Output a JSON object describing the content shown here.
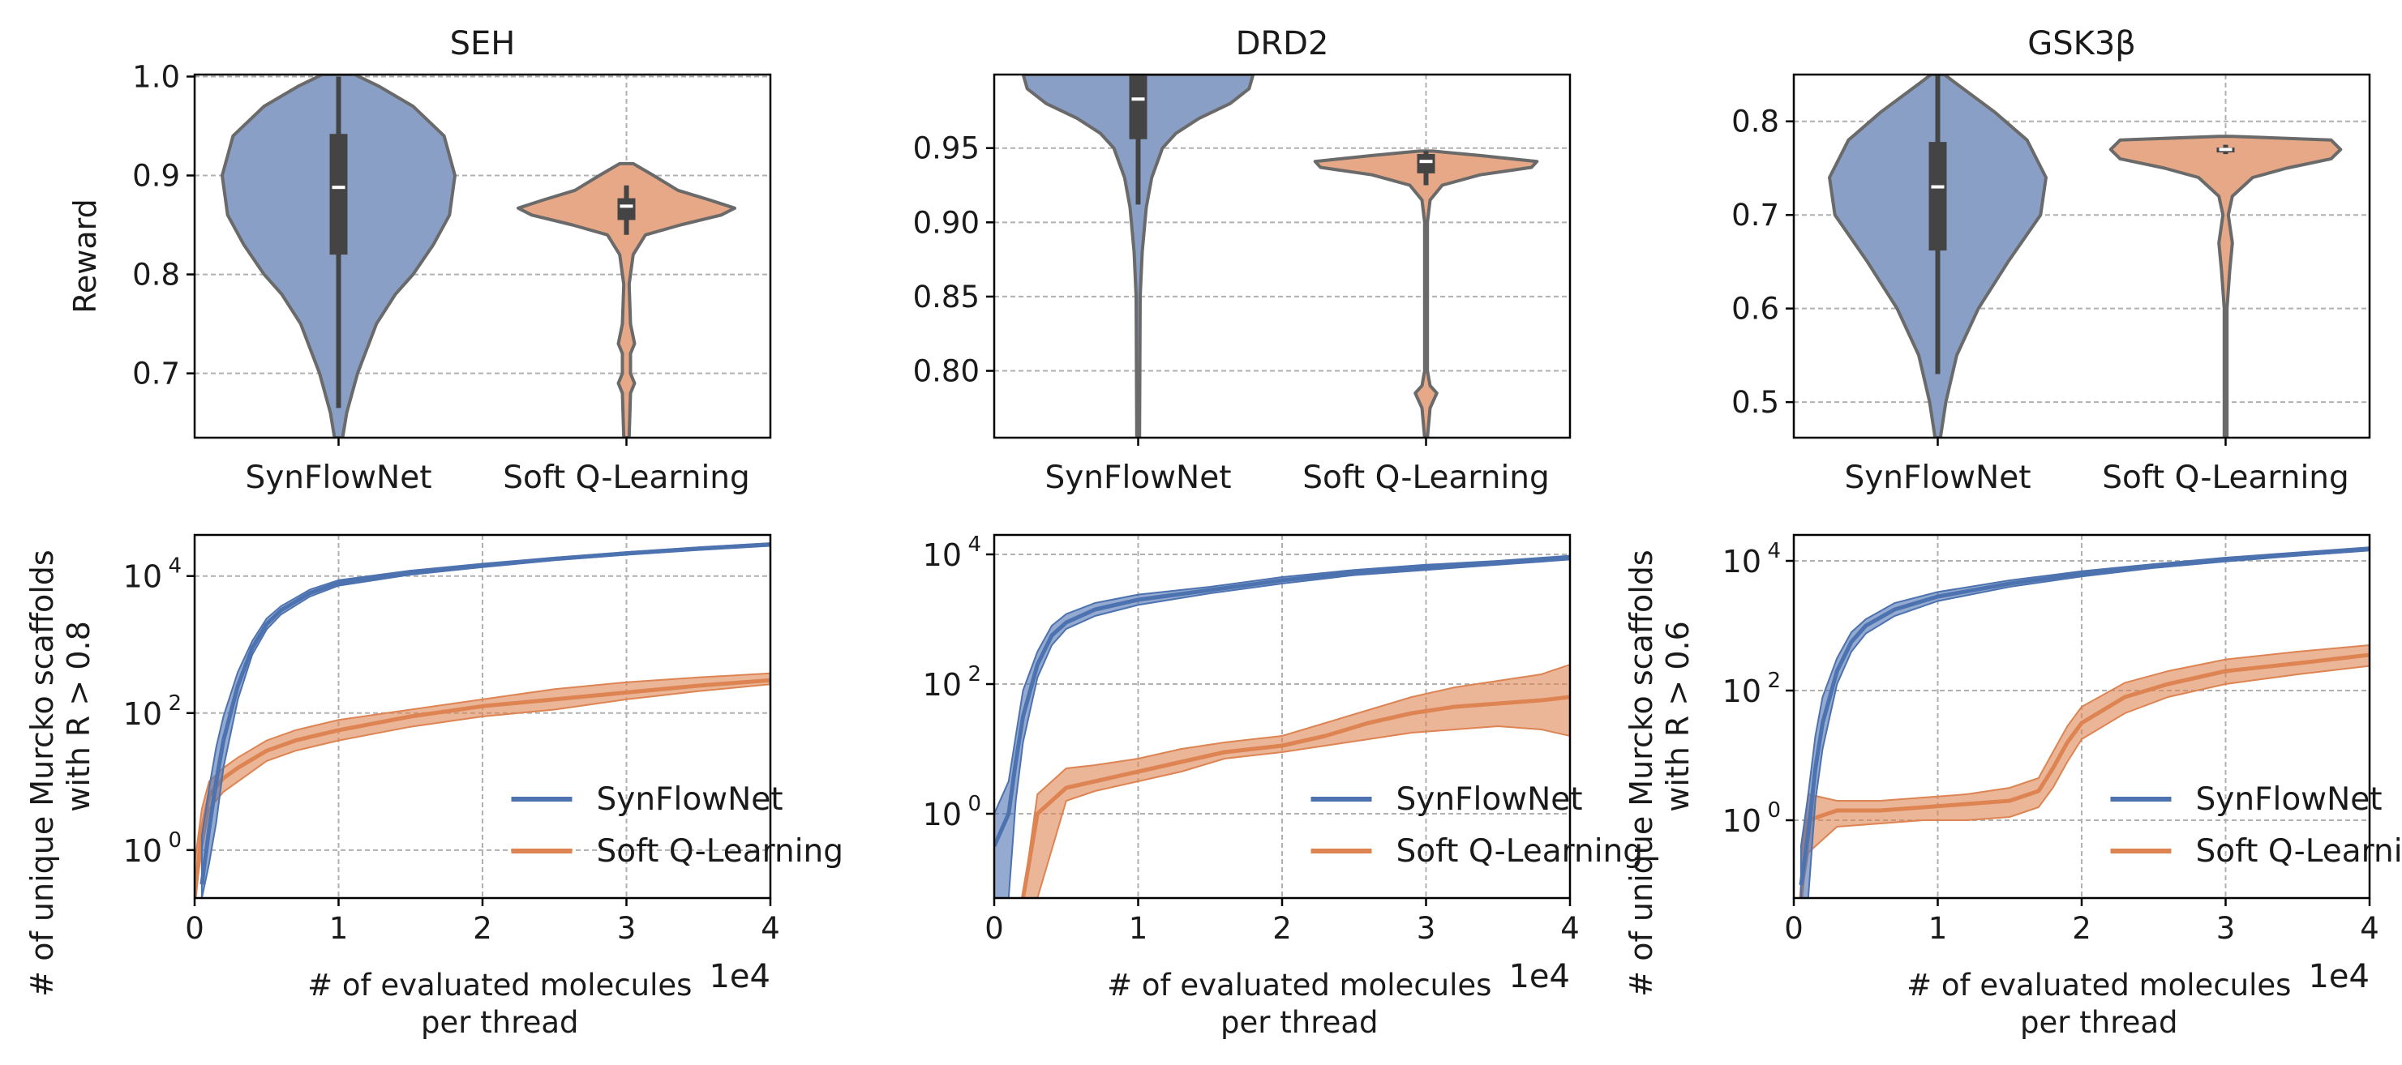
{
  "colors": {
    "synflownet": "#4c72b0",
    "soft_q": "#dd8452",
    "synflownet_violin": "#8a9fc6",
    "soft_q_violin": "#e6a887",
    "grid": "#b0b0b0"
  },
  "chart_data": [
    {
      "type": "violin",
      "title": "SEH",
      "ylabel": "Reward",
      "ylim": [
        0.635,
        1.002
      ],
      "yticks": [
        0.7,
        0.8,
        0.9,
        1.0
      ],
      "ytick_labels": [
        "0.7",
        "0.8",
        "0.9",
        "1.0"
      ],
      "categories": [
        "SynFlowNet",
        "Soft Q-Learning"
      ],
      "violins": [
        {
          "name": "SynFlowNet",
          "color": "#8a9fc6",
          "median": 0.888,
          "q1": 0.82,
          "q3": 0.942,
          "whisker_low": 0.665,
          "whisker_high": 1.0,
          "shape": [
            [
              0.635,
              0.03
            ],
            [
              0.66,
              0.06
            ],
            [
              0.7,
              0.14
            ],
            [
              0.75,
              0.28
            ],
            [
              0.78,
              0.42
            ],
            [
              0.8,
              0.55
            ],
            [
              0.83,
              0.7
            ],
            [
              0.86,
              0.82
            ],
            [
              0.9,
              0.86
            ],
            [
              0.94,
              0.78
            ],
            [
              0.97,
              0.55
            ],
            [
              0.99,
              0.3
            ],
            [
              1.002,
              0.12
            ]
          ]
        },
        {
          "name": "Soft Q-Learning",
          "color": "#e6a887",
          "median": 0.869,
          "q1": 0.855,
          "q3": 0.877,
          "whisker_low": 0.84,
          "whisker_high": 0.89,
          "shape": [
            [
              0.635,
              0.02
            ],
            [
              0.68,
              0.03
            ],
            [
              0.69,
              0.06
            ],
            [
              0.7,
              0.03
            ],
            [
              0.72,
              0.03
            ],
            [
              0.73,
              0.06
            ],
            [
              0.75,
              0.03
            ],
            [
              0.79,
              0.02
            ],
            [
              0.82,
              0.05
            ],
            [
              0.84,
              0.14
            ],
            [
              0.85,
              0.4
            ],
            [
              0.86,
              0.7
            ],
            [
              0.867,
              0.8
            ],
            [
              0.875,
              0.62
            ],
            [
              0.885,
              0.38
            ],
            [
              0.9,
              0.2
            ],
            [
              0.912,
              0.05
            ]
          ]
        }
      ]
    },
    {
      "type": "violin",
      "title": "DRD2",
      "ylabel": "",
      "ylim": [
        0.755,
        0.9995
      ],
      "yticks": [
        0.8,
        0.85,
        0.9,
        0.95
      ],
      "ytick_labels": [
        "0.80",
        "0.85",
        "0.90",
        "0.95"
      ],
      "categories": [
        "SynFlowNet",
        "Soft Q-Learning"
      ],
      "violins": [
        {
          "name": "SynFlowNet",
          "color": "#8a9fc6",
          "median": 0.983,
          "q1": 0.956,
          "q3": 0.999,
          "whisker_low": 0.912,
          "whisker_high": 0.9995,
          "shape": [
            [
              0.755,
              0.01
            ],
            [
              0.85,
              0.015
            ],
            [
              0.88,
              0.03
            ],
            [
              0.91,
              0.06
            ],
            [
              0.93,
              0.1
            ],
            [
              0.95,
              0.18
            ],
            [
              0.96,
              0.28
            ],
            [
              0.97,
              0.45
            ],
            [
              0.98,
              0.68
            ],
            [
              0.99,
              0.82
            ],
            [
              0.9995,
              0.85
            ]
          ]
        },
        {
          "name": "Soft Q-Learning",
          "color": "#e6a887",
          "median": 0.941,
          "q1": 0.933,
          "q3": 0.946,
          "whisker_low": 0.925,
          "whisker_high": 0.948,
          "shape": [
            [
              0.755,
              0.01
            ],
            [
              0.775,
              0.03
            ],
            [
              0.785,
              0.08
            ],
            [
              0.79,
              0.03
            ],
            [
              0.8,
              0.01
            ],
            [
              0.9,
              0.01
            ],
            [
              0.915,
              0.03
            ],
            [
              0.925,
              0.12
            ],
            [
              0.932,
              0.4
            ],
            [
              0.937,
              0.78
            ],
            [
              0.941,
              0.82
            ],
            [
              0.945,
              0.4
            ],
            [
              0.948,
              0.05
            ]
          ]
        }
      ]
    },
    {
      "type": "violin",
      "title": "GSK3β",
      "ylabel": "",
      "ylim": [
        0.462,
        0.85
      ],
      "yticks": [
        0.5,
        0.6,
        0.7,
        0.8
      ],
      "ytick_labels": [
        "0.5",
        "0.6",
        "0.7",
        "0.8"
      ],
      "categories": [
        "SynFlowNet",
        "Soft Q-Learning"
      ],
      "violins": [
        {
          "name": "SynFlowNet",
          "color": "#8a9fc6",
          "median": 0.73,
          "q1": 0.662,
          "q3": 0.778,
          "whisker_low": 0.53,
          "whisker_high": 0.85,
          "shape": [
            [
              0.462,
              0.02
            ],
            [
              0.5,
              0.06
            ],
            [
              0.55,
              0.14
            ],
            [
              0.6,
              0.3
            ],
            [
              0.65,
              0.52
            ],
            [
              0.7,
              0.76
            ],
            [
              0.74,
              0.8
            ],
            [
              0.78,
              0.66
            ],
            [
              0.81,
              0.42
            ],
            [
              0.84,
              0.14
            ],
            [
              0.85,
              0.05
            ]
          ]
        },
        {
          "name": "Soft Q-Learning",
          "color": "#e6a887",
          "median": 0.77,
          "q1": 0.768,
          "q3": 0.772,
          "whisker_low": 0.765,
          "whisker_high": 0.775,
          "shape": [
            [
              0.462,
              0.01
            ],
            [
              0.6,
              0.01
            ],
            [
              0.64,
              0.03
            ],
            [
              0.67,
              0.05
            ],
            [
              0.7,
              0.02
            ],
            [
              0.72,
              0.05
            ],
            [
              0.74,
              0.2
            ],
            [
              0.75,
              0.45
            ],
            [
              0.76,
              0.78
            ],
            [
              0.77,
              0.85
            ],
            [
              0.78,
              0.78
            ],
            [
              0.784,
              0.05
            ]
          ]
        }
      ]
    },
    {
      "type": "line",
      "title": "",
      "xlabel": "# of evaluated molecules\nper thread",
      "xlabel_line1": "# of evaluated molecules",
      "xlabel_line2": "per thread",
      "offset_label": "1e4",
      "ylabel": "# of unique Murcko scaffolds with R > 0.8",
      "ylabel_line1": "# of unique Murcko scaffolds",
      "ylabel_line2": "with R > 0.8",
      "yscale": "log",
      "xlim": [
        0,
        4
      ],
      "ylim_log10": [
        -1.4,
        1.2
      ],
      "ylim_log10_note": "scaled; actual ylim log10 [-0.7, 4.6]",
      "ylim_log": [
        -0.7,
        4.6
      ],
      "xticks": [
        0,
        1,
        2,
        3,
        4
      ],
      "xtick_labels": [
        "0",
        "1",
        "2",
        "3",
        "4"
      ],
      "yticks_log10": [
        0,
        2,
        4
      ],
      "ytick_labels": [
        "10",
        "10",
        "10"
      ],
      "ytick_exps": [
        "0",
        "2",
        "4"
      ],
      "legend": [
        "SynFlowNet",
        "Soft Q-Learning"
      ],
      "legend_loc": "lower-right",
      "series": [
        {
          "name": "SynFlowNet",
          "color": "#4c72b0",
          "x": [
            0.05,
            0.1,
            0.15,
            0.2,
            0.3,
            0.4,
            0.5,
            0.6,
            0.8,
            1.0,
            1.5,
            2.0,
            2.5,
            3.0,
            3.5,
            4.0
          ],
          "log10_mean": [
            -0.5,
            0.3,
            1.0,
            1.6,
            2.4,
            2.95,
            3.3,
            3.5,
            3.75,
            3.9,
            4.05,
            4.15,
            4.25,
            4.33,
            4.4,
            4.46
          ],
          "log10_lo": [
            -0.7,
            -0.2,
            0.4,
            1.2,
            2.2,
            2.85,
            3.22,
            3.44,
            3.7,
            3.86,
            4.02,
            4.13,
            4.23,
            4.31,
            4.38,
            4.44
          ],
          "log10_hi": [
            0.2,
            0.9,
            1.5,
            1.95,
            2.6,
            3.05,
            3.38,
            3.56,
            3.8,
            3.94,
            4.08,
            4.18,
            4.27,
            4.35,
            4.42,
            4.48
          ]
        },
        {
          "name": "Soft Q-Learning",
          "color": "#dd8452",
          "x": [
            0.0,
            0.05,
            0.1,
            0.2,
            0.3,
            0.5,
            0.7,
            1.0,
            1.5,
            2.0,
            2.5,
            3.0,
            3.5,
            4.0
          ],
          "log10_mean": [
            -0.7,
            0.3,
            0.8,
            1.05,
            1.2,
            1.45,
            1.6,
            1.75,
            1.95,
            2.1,
            2.2,
            2.3,
            2.4,
            2.48
          ],
          "log10_lo": [
            -0.7,
            0.0,
            0.6,
            0.85,
            1.0,
            1.3,
            1.45,
            1.6,
            1.8,
            1.95,
            2.05,
            2.2,
            2.32,
            2.42
          ],
          "log10_hi": [
            -0.2,
            0.6,
            1.0,
            1.2,
            1.35,
            1.6,
            1.75,
            1.9,
            2.05,
            2.2,
            2.35,
            2.45,
            2.52,
            2.58
          ]
        }
      ]
    },
    {
      "type": "line",
      "title": "",
      "xlabel_line1": "# of evaluated molecules",
      "xlabel_line2": "per thread",
      "offset_label": "1e4",
      "yscale": "log",
      "xlim": [
        0,
        4
      ],
      "ylim_log": [
        -1.3,
        4.3
      ],
      "xticks": [
        0,
        1,
        2,
        3,
        4
      ],
      "xtick_labels": [
        "0",
        "1",
        "2",
        "3",
        "4"
      ],
      "yticks_log10": [
        0,
        2,
        4
      ],
      "ytick_labels": [
        "10",
        "10",
        "10"
      ],
      "ytick_exps": [
        "0",
        "2",
        "4"
      ],
      "legend": [
        "SynFlowNet",
        "Soft Q-Learning"
      ],
      "legend_loc": "lower-right",
      "series": [
        {
          "name": "SynFlowNet",
          "color": "#4c72b0",
          "x": [
            0.0,
            0.1,
            0.15,
            0.2,
            0.3,
            0.4,
            0.5,
            0.7,
            1.0,
            1.5,
            2.0,
            2.5,
            3.0,
            3.5,
            4.0
          ],
          "log10_mean": [
            -0.5,
            0.0,
            0.8,
            1.5,
            2.3,
            2.75,
            2.95,
            3.15,
            3.3,
            3.45,
            3.6,
            3.72,
            3.8,
            3.87,
            3.95
          ],
          "log10_lo": [
            -1.3,
            -1.3,
            0.2,
            1.1,
            2.1,
            2.6,
            2.85,
            3.05,
            3.22,
            3.4,
            3.55,
            3.68,
            3.76,
            3.84,
            3.92
          ],
          "log10_hi": [
            0.0,
            0.5,
            1.2,
            1.9,
            2.5,
            2.9,
            3.08,
            3.25,
            3.38,
            3.5,
            3.65,
            3.76,
            3.84,
            3.9,
            3.98
          ]
        },
        {
          "name": "Soft Q-Learning",
          "color": "#dd8452",
          "x": [
            0.2,
            0.3,
            0.5,
            0.7,
            1.0,
            1.3,
            1.6,
            2.0,
            2.3,
            2.6,
            2.9,
            3.2,
            3.5,
            3.8,
            4.0
          ],
          "log10_mean": [
            -1.3,
            0.0,
            0.4,
            0.5,
            0.65,
            0.8,
            0.95,
            1.05,
            1.2,
            1.4,
            1.55,
            1.65,
            1.7,
            1.75,
            1.8
          ],
          "log10_lo": [
            -1.3,
            -1.3,
            0.2,
            0.35,
            0.5,
            0.65,
            0.85,
            0.95,
            1.05,
            1.15,
            1.25,
            1.3,
            1.35,
            1.3,
            1.2
          ],
          "log10_hi": [
            -1.3,
            0.3,
            0.7,
            0.75,
            0.85,
            1.0,
            1.1,
            1.2,
            1.4,
            1.6,
            1.8,
            1.95,
            2.05,
            2.15,
            2.3
          ]
        }
      ]
    },
    {
      "type": "line",
      "title": "",
      "xlabel_line1": "# of evaluated molecules",
      "xlabel_line2": "per thread",
      "offset_label": "1e4",
      "ylabel_line1": "# of unique Murcko scaffolds",
      "ylabel_line2": "with R > 0.6",
      "yscale": "log",
      "xlim": [
        0,
        4
      ],
      "ylim_log": [
        -1.2,
        4.4
      ],
      "xticks": [
        0,
        1,
        2,
        3,
        4
      ],
      "xtick_labels": [
        "0",
        "1",
        "2",
        "3",
        "4"
      ],
      "yticks_log10": [
        0,
        2,
        4
      ],
      "ytick_labels": [
        "10",
        "10",
        "10"
      ],
      "ytick_exps": [
        "0",
        "2",
        "4"
      ],
      "legend": [
        "SynFlowNet",
        "Soft Q-Learning"
      ],
      "legend_loc": "lower-right",
      "series": [
        {
          "name": "SynFlowNet",
          "color": "#4c72b0",
          "x": [
            0.05,
            0.1,
            0.15,
            0.2,
            0.3,
            0.4,
            0.5,
            0.7,
            1.0,
            1.5,
            2.0,
            2.5,
            3.0,
            3.5,
            4.0
          ],
          "log10_mean": [
            -1.0,
            -0.2,
            0.8,
            1.5,
            2.3,
            2.75,
            3.0,
            3.25,
            3.45,
            3.65,
            3.8,
            3.92,
            4.02,
            4.1,
            4.18
          ],
          "log10_lo": [
            -1.2,
            -1.2,
            0.3,
            1.1,
            2.1,
            2.6,
            2.88,
            3.15,
            3.38,
            3.6,
            3.76,
            3.89,
            3.99,
            4.08,
            4.16
          ],
          "log10_hi": [
            -0.4,
            0.4,
            1.3,
            1.9,
            2.5,
            2.9,
            3.1,
            3.35,
            3.52,
            3.7,
            3.84,
            3.95,
            4.05,
            4.13,
            4.21
          ]
        },
        {
          "name": "Soft Q-Learning",
          "color": "#dd8452",
          "x": [
            0.05,
            0.1,
            0.3,
            0.6,
            0.9,
            1.2,
            1.5,
            1.7,
            1.8,
            1.9,
            2.0,
            2.3,
            2.6,
            3.0,
            3.5,
            4.0
          ],
          "log10_mean": [
            -1.2,
            0.0,
            0.15,
            0.15,
            0.2,
            0.25,
            0.3,
            0.45,
            0.8,
            1.2,
            1.5,
            1.9,
            2.1,
            2.3,
            2.42,
            2.55
          ],
          "log10_lo": [
            -1.2,
            -0.5,
            -0.1,
            -0.05,
            0.0,
            0.0,
            0.05,
            0.2,
            0.5,
            0.9,
            1.25,
            1.65,
            1.9,
            2.1,
            2.25,
            2.38
          ],
          "log10_hi": [
            -0.6,
            0.4,
            0.3,
            0.3,
            0.35,
            0.4,
            0.5,
            0.65,
            1.05,
            1.45,
            1.75,
            2.12,
            2.3,
            2.48,
            2.6,
            2.7
          ]
        }
      ]
    }
  ]
}
